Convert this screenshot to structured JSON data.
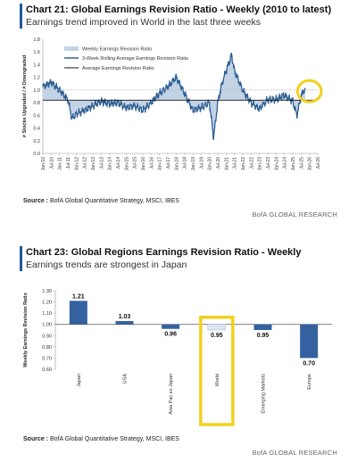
{
  "chart1": {
    "title": "Chart 21: Global Earnings Revision Ratio - Weekly (2010 to latest)",
    "subtitle": "Earnings trend improved in World in the last three weeks",
    "source_label": "Source :",
    "source_text": "BofA Global Quantitative Strategy, MSCI, IBES",
    "brand": "BofA GLOBAL RESEARCH"
  },
  "chart2": {
    "title": "Chart 23: Global Regions Earnings Revision Ratio - Weekly",
    "subtitle": "Earnings trends are strongest in Japan",
    "source_label": "Source :",
    "source_text": "BofA Global Quantitative Strategy, MSCI, IBES",
    "brand": "BofA GLOBAL RESEARCH"
  },
  "colors": {
    "line": "#2e5f93",
    "area": "#c3d3e6",
    "bar": "#3462a0",
    "bar_world": "#dbe6f2",
    "highlight": "#f2d01e",
    "average": "#111111"
  },
  "chart_data": [
    {
      "type": "line",
      "ylabel": "# Stocks Upgraded / # Downgraded",
      "ylim": [
        0,
        1.8
      ],
      "yticks": [
        "0.0",
        "0.2",
        "0.4",
        "0.6",
        "0.8",
        "1.0",
        "1.2",
        "1.4",
        "1.6",
        "1.8"
      ],
      "x_tick_labels": [
        "Jan-10",
        "Jul-10",
        "Jan-11",
        "Jul-11",
        "Jan-12",
        "Jul-12",
        "Jan-13",
        "Jul-13",
        "Jan-14",
        "Jul-14",
        "Jan-15",
        "Jul-15",
        "Jan-16",
        "Jul-16",
        "Jan-17",
        "Jul-17",
        "Jan-18",
        "Jul-18",
        "Jan-19",
        "Jul-19",
        "Jan-20",
        "Jul-20",
        "Jan-21",
        "Jul-21",
        "Jan-22",
        "Jul-22",
        "Jan-23",
        "Jul-23",
        "Jan-24",
        "Jul-24",
        "Jan-25",
        "Jul-25",
        "Jan-26",
        "Jul-26"
      ],
      "legend": [
        "Weekly Earnings Revision Ratio",
        "3-Week Rolling Average Earnings Revision Ratio",
        "Average Earnings Revision Ratio"
      ],
      "legend_position": "top-left",
      "average": 0.84,
      "highlight_period": [
        "Jul-25",
        "Jul-26"
      ],
      "series": [
        {
          "name": "3-Week Rolling Average Earnings Revision Ratio",
          "x": [
            "Jan-10",
            "Jul-10",
            "Jan-11",
            "Jul-11",
            "Oct-11",
            "Jan-12",
            "Jul-12",
            "Jan-13",
            "Jul-13",
            "Jan-14",
            "Jul-14",
            "Jan-15",
            "Jul-15",
            "Jan-16",
            "Jul-16",
            "Jan-17",
            "Jul-17",
            "Jan-18",
            "Jul-18",
            "Jan-19",
            "Jul-19",
            "Jan-20",
            "Apr-20",
            "Jul-20",
            "Oct-20",
            "Jan-21",
            "May-21",
            "Jul-21",
            "Jan-22",
            "Jul-22",
            "Jan-23",
            "Jul-23",
            "Jan-24",
            "Jul-24",
            "Jan-25",
            "Apr-25",
            "Jul-25",
            "Sep-25",
            "Oct-25"
          ],
          "values": [
            1.05,
            1.12,
            1.0,
            0.85,
            0.55,
            0.62,
            0.68,
            0.75,
            0.82,
            0.78,
            0.8,
            0.72,
            0.75,
            0.68,
            0.8,
            0.95,
            1.05,
            1.2,
            0.95,
            0.68,
            0.72,
            0.8,
            0.25,
            0.8,
            1.1,
            1.3,
            1.55,
            1.3,
            1.0,
            0.8,
            0.7,
            0.85,
            0.85,
            0.92,
            0.82,
            0.6,
            0.9,
            1.0,
            0.98
          ]
        }
      ]
    },
    {
      "type": "bar",
      "ylabel": "Weekly Earnings Revision Ratio",
      "ylim": [
        0.6,
        1.3
      ],
      "baseline": 1.0,
      "yticks": [
        "0.60",
        "0.70",
        "0.80",
        "0.90",
        "1.00",
        "1.10",
        "1.20",
        "1.30"
      ],
      "categories": [
        "Japan",
        "USA",
        "Asia Pac ex Japan",
        "World",
        "Emerging Markets",
        "Europe"
      ],
      "values": [
        1.21,
        1.03,
        0.96,
        0.95,
        0.95,
        0.7
      ],
      "labels": [
        "1.21",
        "1.03",
        "0.96",
        "0.95",
        "0.95",
        "0.70"
      ],
      "highlight_category": "World"
    }
  ]
}
